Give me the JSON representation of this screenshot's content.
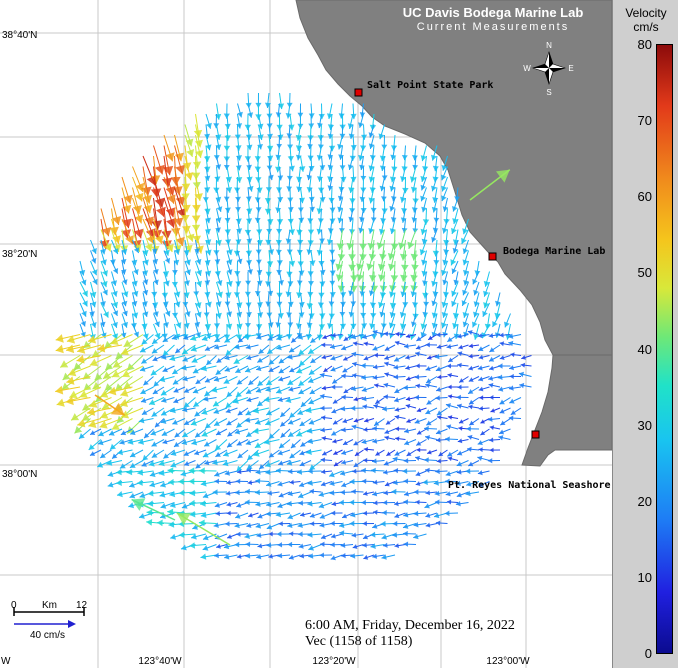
{
  "title": "UC Davis Bodega Marine Lab",
  "subtitle": "Current Measurements",
  "colorbar": {
    "title_line1": "Velocity",
    "title_line2": "cm/s",
    "ticks": [
      "80",
      "70",
      "60",
      "50",
      "40",
      "30",
      "20",
      "10",
      "0"
    ],
    "min": 0,
    "max": 80
  },
  "latitude_labels": [
    "38°40'N",
    "38°20'N",
    "38°00'N"
  ],
  "longitude_labels": [
    "123°40'W",
    "123°20'W",
    "123°00'W",
    "W"
  ],
  "locations": [
    {
      "name": "Salt Point State Park"
    },
    {
      "name": "Bodega Marine Lab"
    },
    {
      "name": "Pt. Reyes National Seashore"
    }
  ],
  "compass": {
    "n": "N",
    "s": "S",
    "e": "E",
    "w": "W"
  },
  "scale": {
    "zero": "0",
    "unit": "Km",
    "max": "12",
    "vector_ref": "40 cm/s"
  },
  "timestamp": "6:00 AM, Friday, December 16, 2022",
  "vector_count": "Vec (1158 of 1158)",
  "colors": {
    "land": "#808080",
    "water": "#ffffff",
    "grid": "#c8c8c8",
    "station": "#e00000"
  }
}
